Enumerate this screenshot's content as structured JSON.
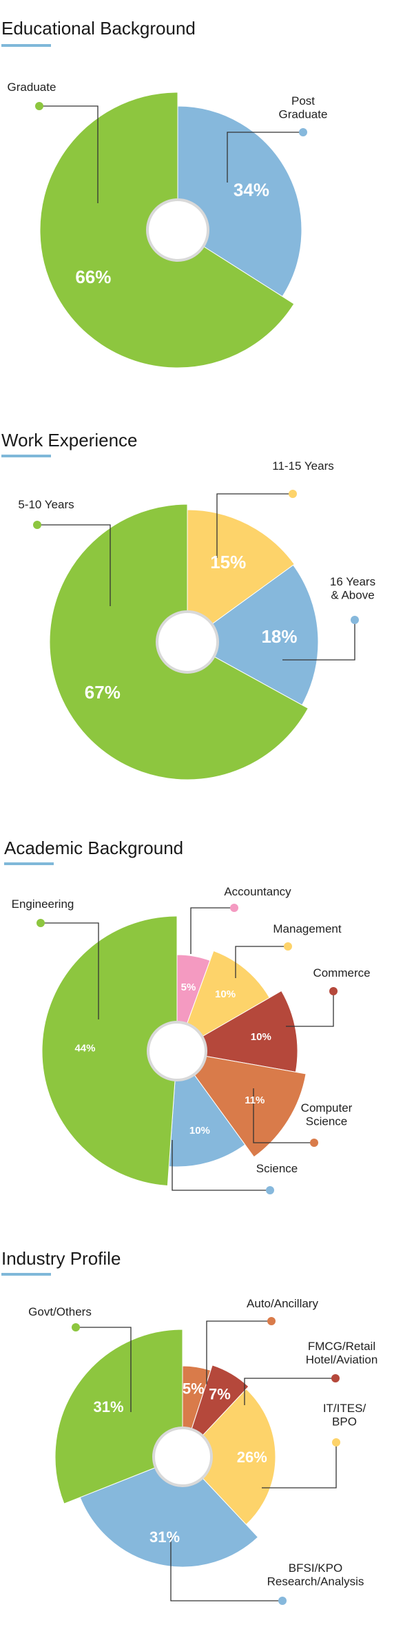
{
  "chart_data": [
    {
      "type": "pie",
      "title": "Educational Background",
      "slices": [
        {
          "label": "Post Graduate",
          "label_lines": [
            "Post",
            "Graduate"
          ],
          "value": 34,
          "display": "34%",
          "color": "#86b8dc"
        },
        {
          "label": "Graduate",
          "label_lines": [
            "Graduate"
          ],
          "value": 66,
          "display": "66%",
          "color": "#8dc63f"
        }
      ]
    },
    {
      "type": "pie",
      "title": "Work Experience",
      "slices": [
        {
          "label": "11-15 Years",
          "label_lines": [
            "11-15 Years"
          ],
          "value": 15,
          "display": "15%",
          "color": "#fdd36a"
        },
        {
          "label": "16 Years & Above",
          "label_lines": [
            "16 Years",
            "& Above"
          ],
          "value": 18,
          "display": "18%",
          "color": "#86b8dc"
        },
        {
          "label": "5-10 Years",
          "label_lines": [
            "5-10 Years"
          ],
          "value": 67,
          "display": "67%",
          "color": "#8dc63f"
        }
      ]
    },
    {
      "type": "pie",
      "title": "Academic Background",
      "slices": [
        {
          "label": "Accountancy",
          "label_lines": [
            "Accountancy"
          ],
          "value": 5,
          "display": "5%",
          "color": "#f49ac1"
        },
        {
          "label": "Management",
          "label_lines": [
            "Management"
          ],
          "value": 10,
          "display": "10%",
          "color": "#fdd36a"
        },
        {
          "label": "Commerce",
          "label_lines": [
            "Commerce"
          ],
          "value": 10,
          "display": "10%",
          "color": "#b5483b"
        },
        {
          "label": "Computer Science",
          "label_lines": [
            "Computer",
            "Science"
          ],
          "value": 11,
          "display": "11%",
          "color": "#d97b4a"
        },
        {
          "label": "Science",
          "label_lines": [
            "Science"
          ],
          "value": 10,
          "display": "10%",
          "color": "#86b8dc"
        },
        {
          "label": "Engineering",
          "label_lines": [
            "Engineering"
          ],
          "value": 44,
          "display": "44%",
          "color": "#8dc63f"
        }
      ]
    },
    {
      "type": "pie",
      "title": "Industry Profile",
      "slices": [
        {
          "label": "Auto/Ancillary",
          "label_lines": [
            "Auto/Ancillary"
          ],
          "value": 5,
          "display": "5%",
          "color": "#d97b4a"
        },
        {
          "label": "FMCG/Retail Hotel/Aviation",
          "label_lines": [
            "FMCG/Retail",
            "Hotel/Aviation"
          ],
          "value": 7,
          "display": "7%",
          "color": "#b5483b"
        },
        {
          "label": "IT/ITES/BPO",
          "label_lines": [
            "IT/ITES/",
            "BPO"
          ],
          "value": 26,
          "display": "26%",
          "color": "#fdd36a"
        },
        {
          "label": "BFSI/KPO Research/Analysis",
          "label_lines": [
            "BFSI/KPO",
            "Research/Analysis"
          ],
          "value": 31,
          "display": "31%",
          "color": "#86b8dc"
        },
        {
          "label": "Govt/Others",
          "label_lines": [
            "Govt/Others"
          ],
          "value": 31,
          "display": "31%",
          "color": "#8dc63f"
        }
      ]
    }
  ]
}
